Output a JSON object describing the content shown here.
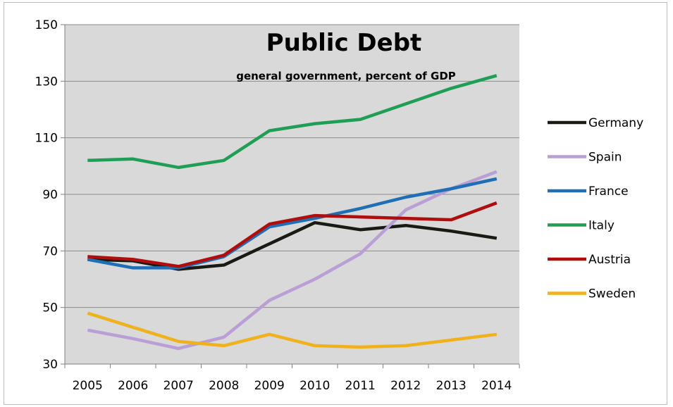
{
  "chart_data": {
    "type": "line",
    "title": "Public Debt",
    "subtitle": "general government, percent of GDP",
    "xlabel": "",
    "ylabel": "",
    "categories": [
      "2005",
      "2006",
      "2007",
      "2008",
      "2009",
      "2010",
      "2011",
      "2012",
      "2013",
      "2014"
    ],
    "ylim": [
      30,
      150
    ],
    "yticks": [
      30,
      50,
      70,
      90,
      110,
      130,
      150
    ],
    "grid": true,
    "legend_position": "right",
    "plot_background": "#d9d9d9",
    "series": [
      {
        "name": "Germany",
        "color": "#1a1a14",
        "values": [
          67,
          66.5,
          63.5,
          65,
          72.5,
          80,
          77.5,
          79,
          77,
          74.5
        ]
      },
      {
        "name": "Spain",
        "color": "#b99fd6",
        "values": [
          42,
          39,
          35.5,
          39.5,
          52.5,
          60,
          69,
          84.5,
          92,
          98
        ]
      },
      {
        "name": "France",
        "color": "#1f6fb6",
        "values": [
          67,
          64,
          64,
          68,
          78.5,
          81.5,
          85,
          89,
          92,
          95.5
        ]
      },
      {
        "name": "Italy",
        "color": "#1f9e55",
        "values": [
          102,
          102.5,
          99.5,
          102,
          112.5,
          115,
          116.5,
          122,
          127.5,
          132
        ]
      },
      {
        "name": "Austria",
        "color": "#b00d0d",
        "values": [
          68,
          67,
          64.5,
          68.5,
          79.5,
          82.5,
          82,
          81.5,
          81,
          87
        ]
      },
      {
        "name": "Sweden",
        "color": "#f0b21c",
        "values": [
          48,
          43,
          38,
          36.5,
          40.5,
          36.5,
          36,
          36.5,
          38.5,
          40.5
        ]
      }
    ]
  }
}
